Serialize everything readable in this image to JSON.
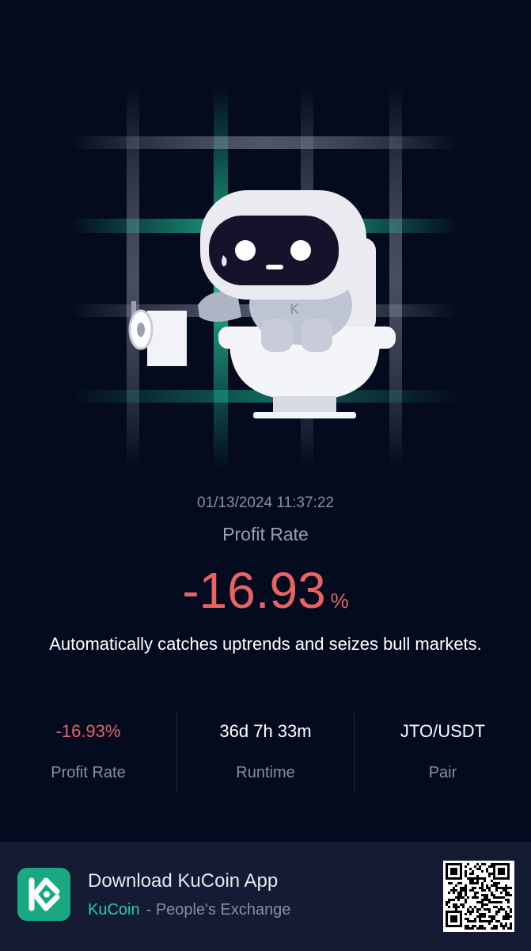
{
  "share_card": {
    "timestamp": "01/13/2024 11:37:22",
    "profit_rate_label": "Profit Rate",
    "profit_rate_value": "-16.93",
    "profit_rate_unit": "%",
    "slogan": "Automatically catches uptrends and seizes bull markets."
  },
  "stats": [
    {
      "value": "-16.93%",
      "label": "Profit Rate"
    },
    {
      "value": "36d 7h 33m",
      "label": "Runtime"
    },
    {
      "value": "JTO/USDT",
      "label": "Pair"
    }
  ],
  "footer": {
    "title": "Download KuCoin App",
    "brand": "KuCoin",
    "tagline": "- People's Exchange",
    "logo_icon": "kucoin-logo-icon",
    "qr_icon": "qr-code-icon"
  },
  "colors": {
    "background": "#050b1f",
    "negative": "#e96363",
    "brand": "#23d1a0",
    "footer": "#141b33"
  }
}
